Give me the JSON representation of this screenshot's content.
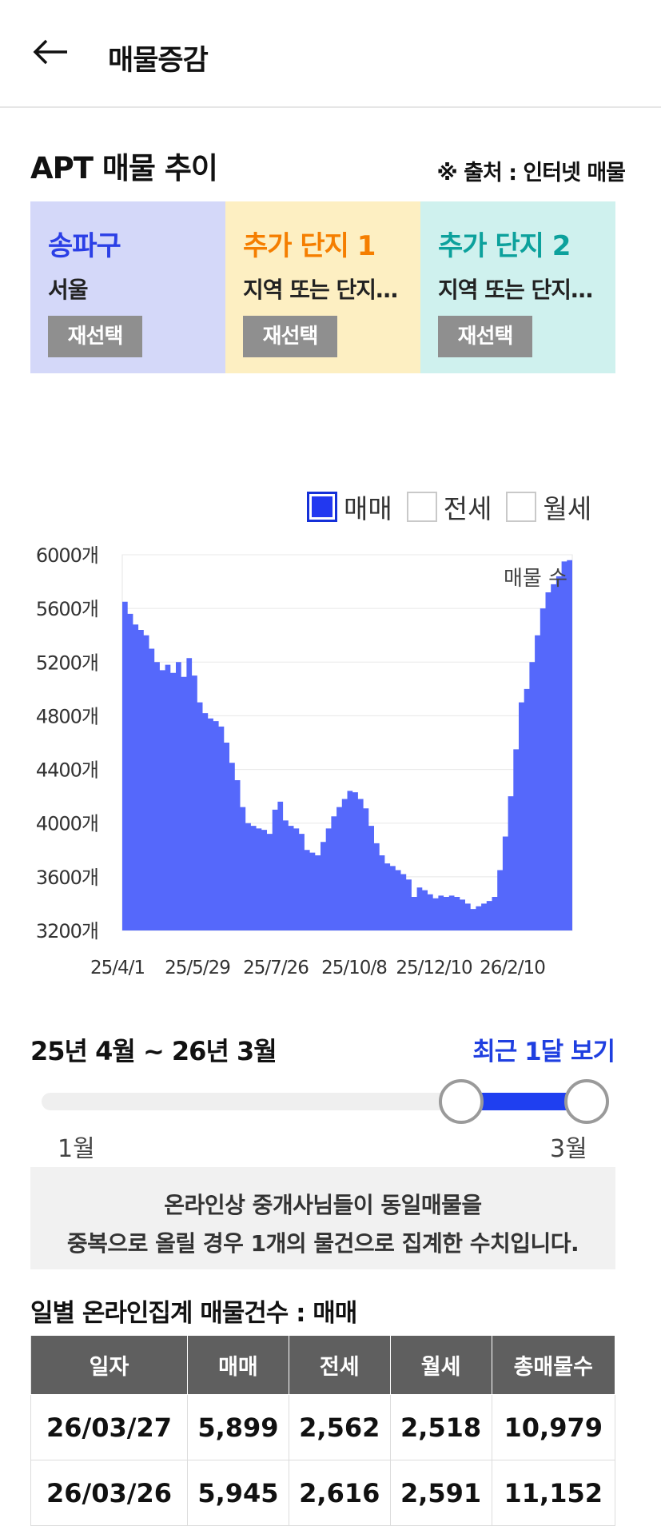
{
  "header": {
    "title": "매물증감",
    "back_icon": "arrow-left-icon"
  },
  "section": {
    "title": "APT 매물 추이",
    "source": "※ 출처 : 인터넷 매물"
  },
  "cards": [
    {
      "title": "송파구",
      "subtitle": "서울",
      "button": "재선택",
      "color": "#2b3fe6"
    },
    {
      "title": "추가 단지 1",
      "subtitle": "지역 또는 단지를 선택",
      "button": "재선택",
      "color": "#f57e00"
    },
    {
      "title": "추가 단지 2",
      "subtitle": "지역 또는 단지를 선택",
      "button": "재선택",
      "color": "#0ca19c"
    }
  ],
  "legend": [
    {
      "label": "매매",
      "checked": true
    },
    {
      "label": "전세",
      "checked": false
    },
    {
      "label": "월세",
      "checked": false
    }
  ],
  "chart_data": {
    "type": "area",
    "ylabel": "",
    "series_label": "매물 수",
    "ylim": [
      3200,
      6000
    ],
    "y_ticks": [
      "6000개",
      "5600개",
      "5200개",
      "4800개",
      "4400개",
      "4000개",
      "3600개",
      "3200개"
    ],
    "x_ticks": [
      "25/4/1",
      "25/5/29",
      "25/7/26",
      "25/10/8",
      "25/12/10",
      "26/2/10"
    ],
    "fill_color": "#5568fb",
    "values": [
      5650,
      5560,
      5480,
      5440,
      5400,
      5300,
      5200,
      5140,
      5180,
      5120,
      5200,
      5090,
      5230,
      5100,
      4900,
      4820,
      4780,
      4760,
      4720,
      4600,
      4450,
      4320,
      4120,
      4000,
      3980,
      3960,
      3950,
      3920,
      4100,
      4160,
      4020,
      3980,
      3960,
      3920,
      3800,
      3780,
      3760,
      3860,
      3960,
      4050,
      4120,
      4180,
      4240,
      4230,
      4180,
      4110,
      3980,
      3850,
      3760,
      3700,
      3680,
      3650,
      3620,
      3580,
      3450,
      3520,
      3500,
      3470,
      3440,
      3460,
      3450,
      3460,
      3450,
      3430,
      3400,
      3360,
      3380,
      3400,
      3420,
      3450,
      3650,
      3900,
      4200,
      4550,
      4900,
      5000,
      5200,
      5400,
      5600,
      5720,
      5780,
      5840,
      5950,
      5960
    ]
  },
  "range": {
    "label": "25년 4월 ~ 26년 3월",
    "recent_button": "최근 1달 보기",
    "min_label": "1월",
    "max_label": "3월",
    "selected_start": 0.83,
    "selected_end": 1.0
  },
  "notice": {
    "line1": "온라인상 중개사님들이 동일매물을",
    "line2": "중복으로 올릴 경우 1개의 물건으로 집계한 수치입니다."
  },
  "table": {
    "title": "일별 온라인집계 매물건수 : 매매",
    "headers": [
      "일자",
      "매매",
      "전세",
      "월세",
      "총매물수"
    ],
    "rows": [
      [
        "26/03/27",
        "5,899",
        "2,562",
        "2,518",
        "10,979"
      ],
      [
        "26/03/26",
        "5,945",
        "2,616",
        "2,591",
        "11,152"
      ]
    ]
  }
}
